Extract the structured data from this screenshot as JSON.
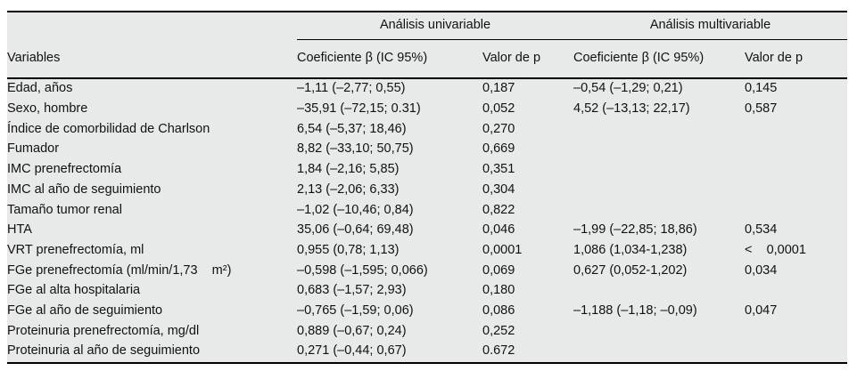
{
  "table": {
    "group_headers": {
      "univariable": "Análisis univariable",
      "multivariable": "Análisis multivariable"
    },
    "columns": {
      "variables": "Variables",
      "coef_uni": "Coeficiente β (IC 95%)",
      "p_uni": "Valor de p",
      "coef_multi": "Coeficiente β (IC 95%)",
      "p_multi": "Valor de p"
    },
    "rows": [
      {
        "variable": "Edad, años",
        "coef_uni": "–1,11 (–2,77; 0,55)",
        "p_uni": "0,187",
        "coef_multi": "–0,54 (–1,29; 0,21)",
        "p_multi": "0,145"
      },
      {
        "variable": "Sexo, hombre",
        "coef_uni": "–35,91 (–72,15; 0.31)",
        "p_uni": "0,052",
        "coef_multi": "4,52 (–13,13; 22,17)",
        "p_multi": "0,587"
      },
      {
        "variable": "Índice de comorbilidad de Charlson",
        "coef_uni": "6,54 (–5,37; 18,46)",
        "p_uni": "0,270",
        "coef_multi": "",
        "p_multi": ""
      },
      {
        "variable": "Fumador",
        "coef_uni": "8,82 (–33,10; 50,75)",
        "p_uni": "0,669",
        "coef_multi": "",
        "p_multi": ""
      },
      {
        "variable": "IMC prenefrectomía",
        "coef_uni": "1,84 (–2,16; 5,85)",
        "p_uni": "0,351",
        "coef_multi": "",
        "p_multi": ""
      },
      {
        "variable": "IMC al año de seguimiento",
        "coef_uni": "2,13 (–2,06; 6,33)",
        "p_uni": "0,304",
        "coef_multi": "",
        "p_multi": ""
      },
      {
        "variable": "Tamaño tumor renal",
        "coef_uni": "–1,02 (–10,46; 0,84)",
        "p_uni": "0,822",
        "coef_multi": "",
        "p_multi": ""
      },
      {
        "variable": "HTA",
        "coef_uni": "35,06 (–0,64; 69,48)",
        "p_uni": "0,046",
        "coef_multi": "–1,99 (–22,85; 18,86)",
        "p_multi": "0,534"
      },
      {
        "variable": "VRT prenefrectomía, ml",
        "coef_uni": "0,955 (0,78; 1,13)",
        "p_uni": "0,0001",
        "coef_multi": "1,086 (1,034-1,238)",
        "p_multi": "<    0,0001"
      },
      {
        "variable": "FGe prenefrectomía (ml/min/1,73    m²)",
        "coef_uni": "–0,598 (–1,595; 0,066)",
        "p_uni": "0,069",
        "coef_multi": "0,627 (0,052-1,202)",
        "p_multi": "0,034"
      },
      {
        "variable": "FGe al alta hospitalaria",
        "coef_uni": "0,683 (–1,57; 2,93)",
        "p_uni": "0,180",
        "coef_multi": "",
        "p_multi": ""
      },
      {
        "variable": "FGe al año de seguimiento",
        "coef_uni": "–0,765 (–1,59; 0,06)",
        "p_uni": "0,086",
        "coef_multi": "–1,188 (–1,18; –0,09)",
        "p_multi": "0,047"
      },
      {
        "variable": "Proteinuria prenefrectomía, mg/dl",
        "coef_uni": "0,889 (–0,67; 0,24)",
        "p_uni": "0,252",
        "coef_multi": "",
        "p_multi": ""
      },
      {
        "variable": "Proteinuria al año de seguimiento",
        "coef_uni": "0,271 (–0,44; 0,67)",
        "p_uni": "0.672",
        "coef_multi": "",
        "p_multi": ""
      }
    ],
    "colors": {
      "table_bg": "#e8eae9",
      "rule": "#000000",
      "text": "#111111",
      "page_bg": "#ffffff"
    }
  }
}
